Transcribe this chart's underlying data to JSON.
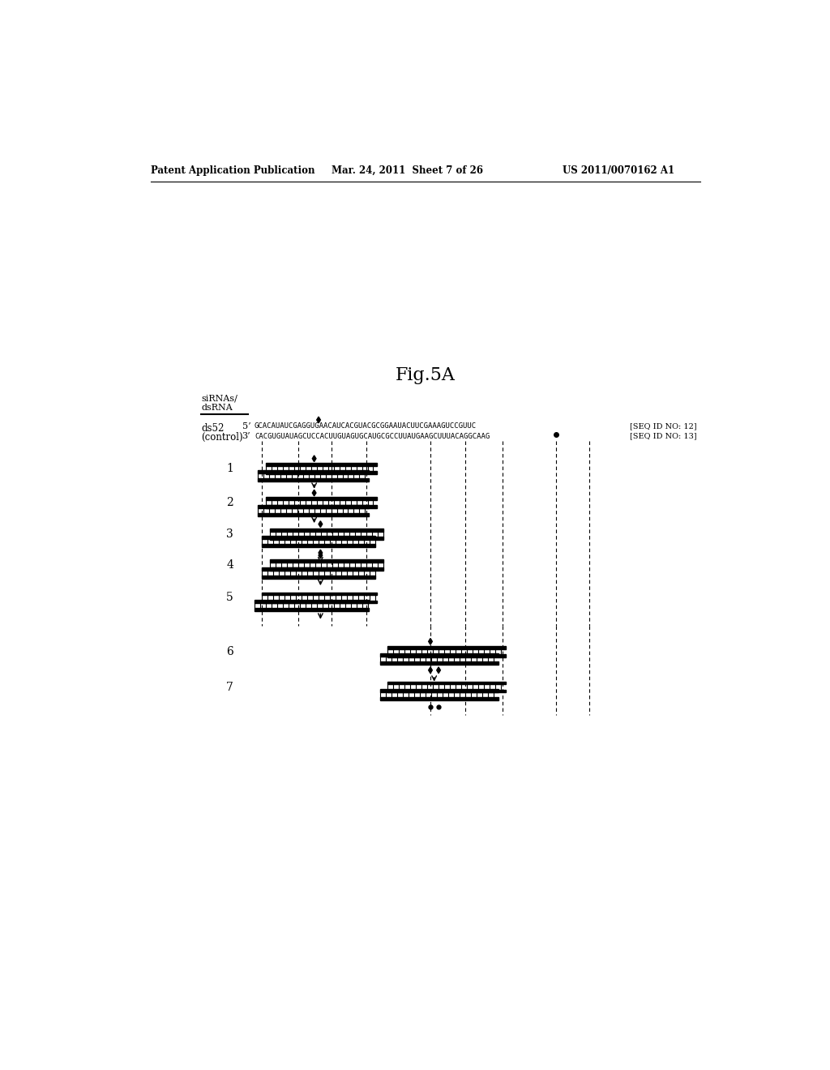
{
  "title": "Fig.5A",
  "header_left": "Patent Application Publication",
  "header_mid": "Mar. 24, 2011  Sheet 7 of 26",
  "header_right": "US 2011/0070162 A1",
  "label_sirnas": "siRNAs/",
  "label_dsrna": "dsRNA",
  "seq5_text": "GCACAUAUCGAGGUGAACAUCACGUACGCGGAAUACUUCGAAAGUCCGUUC",
  "seq3_text": "3’CACGUGUAUAGCUCCACUUGUAGUGCAUGCGCCUUAUGAAGCUUUACAGGCAAG",
  "seq_id_12": "[SEQ ID NO: 12]",
  "seq_id_13": "[SEQ ID NO: 13]",
  "background_color": "#ffffff",
  "text_color": "#000000"
}
